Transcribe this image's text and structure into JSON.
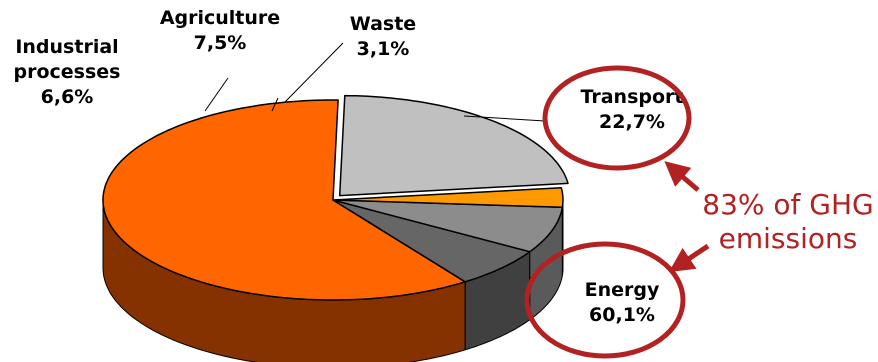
{
  "chart_data": {
    "type": "pie",
    "title": "",
    "slices": [
      {
        "name": "Transport",
        "value": 22.7,
        "label": "22,7%",
        "color": "#c0c0c0",
        "side": "#8c8c8c"
      },
      {
        "name": "Energy",
        "value": 60.1,
        "label": "60,1%",
        "color": "#ff6600",
        "side": "#863200"
      },
      {
        "name": "Industrial processes",
        "label_lines": [
          "Industrial",
          "processes"
        ],
        "value": 6.6,
        "label": "6,6%",
        "color": "#666666",
        "side": "#404040"
      },
      {
        "name": "Agriculture",
        "value": 7.5,
        "label": "7,5%",
        "color": "#8c8c8c",
        "side": "#5a5a5a"
      },
      {
        "name": "Waste",
        "value": 3.1,
        "label": "3,1%",
        "color": "#ff9900",
        "side": "#9a5c00"
      }
    ],
    "annotation": {
      "lines": [
        "83% of GHG",
        "emissions"
      ],
      "color": "#b22222",
      "highlighted": [
        "Transport",
        "Energy"
      ]
    }
  }
}
